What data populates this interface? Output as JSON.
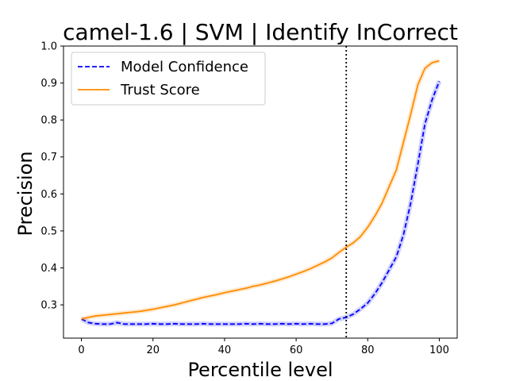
{
  "chart_data": {
    "type": "line",
    "title": "camel-1.6 | SVM | Identify InCorrect",
    "xlabel": "Percentile level",
    "ylabel": "Precision",
    "xlim": [
      -5,
      105
    ],
    "ylim": [
      0.21,
      1.0
    ],
    "xticks": [
      "0",
      "20",
      "40",
      "60",
      "80",
      "100"
    ],
    "yticks": [
      "0.3",
      "0.4",
      "0.5",
      "0.6",
      "0.7",
      "0.8",
      "0.9",
      "1.0"
    ],
    "xtick_values": [
      0,
      20,
      40,
      60,
      80,
      100
    ],
    "ytick_values": [
      0.3,
      0.4,
      0.5,
      0.6,
      0.7,
      0.8,
      0.9,
      1.0
    ],
    "vline_x": 74,
    "legend_position": "upper-left",
    "grid": false,
    "series": [
      {
        "name": "Model Confidence",
        "color": "#0000ff",
        "style": "dashed",
        "x": [
          0,
          2,
          4,
          6,
          8,
          10,
          12,
          14,
          16,
          18,
          20,
          22,
          24,
          26,
          28,
          30,
          32,
          34,
          36,
          38,
          40,
          42,
          44,
          46,
          48,
          50,
          52,
          54,
          56,
          58,
          60,
          62,
          64,
          66,
          68,
          70,
          72,
          74,
          76,
          78,
          80,
          82,
          84,
          86,
          88,
          90,
          92,
          94,
          96,
          98,
          100
        ],
        "y": [
          0.262,
          0.252,
          0.249,
          0.248,
          0.248,
          0.252,
          0.248,
          0.248,
          0.248,
          0.248,
          0.249,
          0.248,
          0.248,
          0.249,
          0.248,
          0.248,
          0.248,
          0.249,
          0.248,
          0.248,
          0.248,
          0.248,
          0.248,
          0.249,
          0.248,
          0.249,
          0.248,
          0.248,
          0.249,
          0.248,
          0.249,
          0.248,
          0.249,
          0.248,
          0.248,
          0.25,
          0.262,
          0.266,
          0.275,
          0.289,
          0.305,
          0.33,
          0.36,
          0.395,
          0.43,
          0.49,
          0.575,
          0.68,
          0.79,
          0.855,
          0.905
        ]
      },
      {
        "name": "Trust Score",
        "color": "#ff8c00",
        "style": "solid",
        "x": [
          0,
          2,
          4,
          6,
          8,
          10,
          12,
          14,
          16,
          18,
          20,
          22,
          24,
          26,
          28,
          30,
          32,
          34,
          36,
          38,
          40,
          42,
          44,
          46,
          48,
          50,
          52,
          54,
          56,
          58,
          60,
          62,
          64,
          66,
          68,
          70,
          72,
          74,
          76,
          78,
          80,
          82,
          84,
          86,
          88,
          90,
          92,
          94,
          96,
          98,
          100
        ],
        "y": [
          0.262,
          0.266,
          0.27,
          0.272,
          0.274,
          0.276,
          0.278,
          0.28,
          0.282,
          0.285,
          0.288,
          0.292,
          0.296,
          0.3,
          0.305,
          0.31,
          0.315,
          0.32,
          0.324,
          0.328,
          0.333,
          0.337,
          0.341,
          0.345,
          0.35,
          0.354,
          0.359,
          0.364,
          0.37,
          0.376,
          0.383,
          0.39,
          0.398,
          0.407,
          0.416,
          0.427,
          0.442,
          0.456,
          0.468,
          0.485,
          0.51,
          0.54,
          0.575,
          0.62,
          0.665,
          0.74,
          0.815,
          0.895,
          0.94,
          0.955,
          0.96
        ]
      }
    ]
  }
}
